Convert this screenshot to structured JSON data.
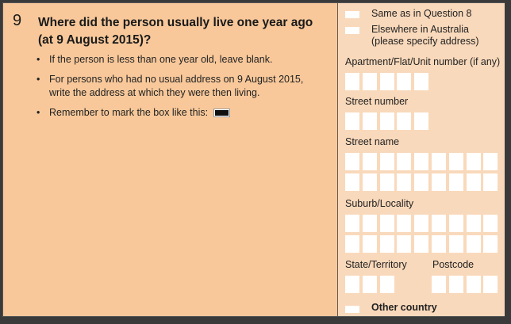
{
  "question": {
    "number": "9",
    "title_line1": "Where did the person usually live one year ago",
    "title_line2": "(at 9 August 2015)?",
    "bullets": [
      "If the person is less than one year old, leave blank.",
      "For persons who had no usual address on 9 August 2015,",
      "write the address at which they were then living.",
      "Remember to mark the box like this:"
    ]
  },
  "options": {
    "same": "Same as in Question 8",
    "elsewhere_line1": "Elsewhere in Australia",
    "elsewhere_line2": "(please specify address)",
    "other_country": "Other country"
  },
  "fields": {
    "apartment": "Apartment/Flat/Unit number (if any)",
    "street_number": "Street number",
    "street_name": "Street name",
    "suburb": "Suburb/Locality",
    "state": "State/Territory",
    "postcode": "Postcode"
  }
}
